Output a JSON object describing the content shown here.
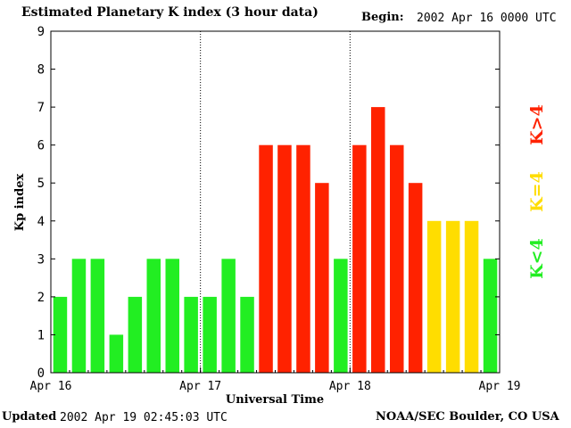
{
  "header": {
    "title": "Estimated Planetary K index (3 hour data)",
    "begin_label": "Begin:",
    "begin_value": "2002 Apr 16 0000 UTC"
  },
  "footer": {
    "updated_label": "Updated",
    "updated_value": "2002 Apr 19 02:45:03 UTC",
    "source": "NOAA/SEC Boulder, CO USA"
  },
  "colors": {
    "low": "#22ee22",
    "mid": "#ffdd00",
    "high": "#ff2200"
  },
  "chart_data": {
    "type": "bar",
    "title": "Estimated Planetary K index (3 hour data)",
    "xlabel": "Universal Time",
    "ylabel": "Kp index",
    "ylim": [
      0,
      9
    ],
    "yticks": [
      0,
      1,
      2,
      3,
      4,
      5,
      6,
      7,
      8,
      9
    ],
    "xtick_labels": [
      "Apr 16",
      "Apr 17",
      "Apr 18",
      "Apr 19"
    ],
    "values": [
      2,
      3,
      3,
      1,
      2,
      3,
      3,
      2,
      2,
      3,
      2,
      6,
      6,
      6,
      5,
      3,
      6,
      7,
      6,
      5,
      4,
      4,
      4,
      3
    ],
    "bar_colors": [
      "#22ee22",
      "#22ee22",
      "#22ee22",
      "#22ee22",
      "#22ee22",
      "#22ee22",
      "#22ee22",
      "#22ee22",
      "#22ee22",
      "#22ee22",
      "#22ee22",
      "#ff2200",
      "#ff2200",
      "#ff2200",
      "#ff2200",
      "#22ee22",
      "#ff2200",
      "#ff2200",
      "#ff2200",
      "#ff2200",
      "#ffdd00",
      "#ffdd00",
      "#ffdd00",
      "#22ee22"
    ],
    "legend": [
      {
        "label": "K<4",
        "color": "#22ee22"
      },
      {
        "label": "K=4",
        "color": "#ffdd00"
      },
      {
        "label": "K>4",
        "color": "#ff2200"
      }
    ],
    "grid": false,
    "day_separators": "dotted"
  }
}
